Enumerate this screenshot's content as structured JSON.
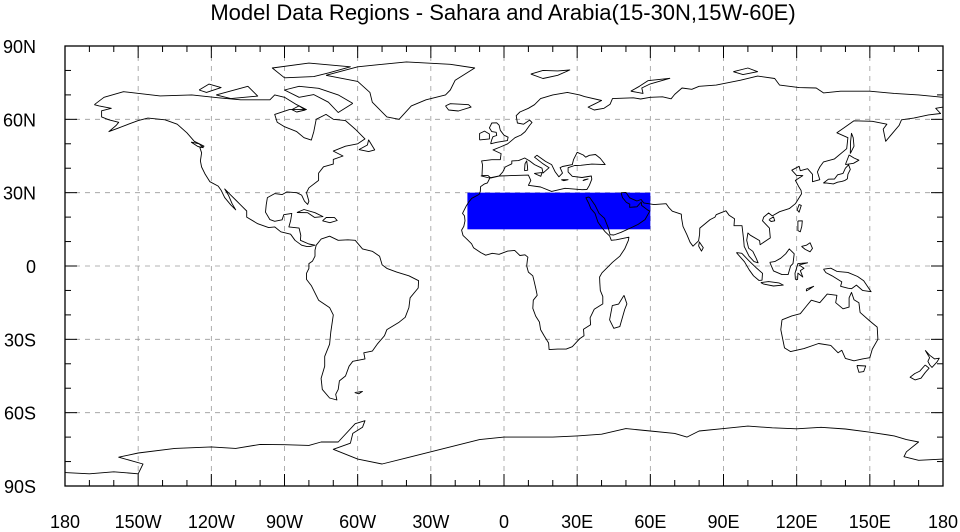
{
  "title": "Model Data Regions - Sahara and Arabia(15-30N,15W-60E)",
  "region": {
    "name": "Sahara and Arabia",
    "lat_min": 15,
    "lat_max": 30,
    "lon_min": -15,
    "lon_max": 60,
    "fill_color": "#0000ff"
  },
  "map": {
    "projection": "cylindrical-equidistant",
    "lon_range": [
      -180,
      180
    ],
    "lat_range": [
      -90,
      90
    ],
    "grid": true,
    "grid_color": "#9a9a9a"
  },
  "x_ticks": [
    {
      "lon": -180,
      "label": "180"
    },
    {
      "lon": -150,
      "label": "150W"
    },
    {
      "lon": -120,
      "label": "120W"
    },
    {
      "lon": -90,
      "label": "90W"
    },
    {
      "lon": -60,
      "label": "60W"
    },
    {
      "lon": -30,
      "label": "30W"
    },
    {
      "lon": 0,
      "label": "0"
    },
    {
      "lon": 30,
      "label": "30E"
    },
    {
      "lon": 60,
      "label": "60E"
    },
    {
      "lon": 90,
      "label": "90E"
    },
    {
      "lon": 120,
      "label": "120E"
    },
    {
      "lon": 150,
      "label": "150E"
    },
    {
      "lon": 180,
      "label": "180"
    }
  ],
  "y_ticks": [
    {
      "lat": 90,
      "label": "90N"
    },
    {
      "lat": 60,
      "label": "60N"
    },
    {
      "lat": 30,
      "label": "30N"
    },
    {
      "lat": 0,
      "label": "0"
    },
    {
      "lat": -30,
      "label": "30S"
    },
    {
      "lat": -60,
      "label": "60S"
    },
    {
      "lat": -90,
      "label": "90S"
    }
  ]
}
